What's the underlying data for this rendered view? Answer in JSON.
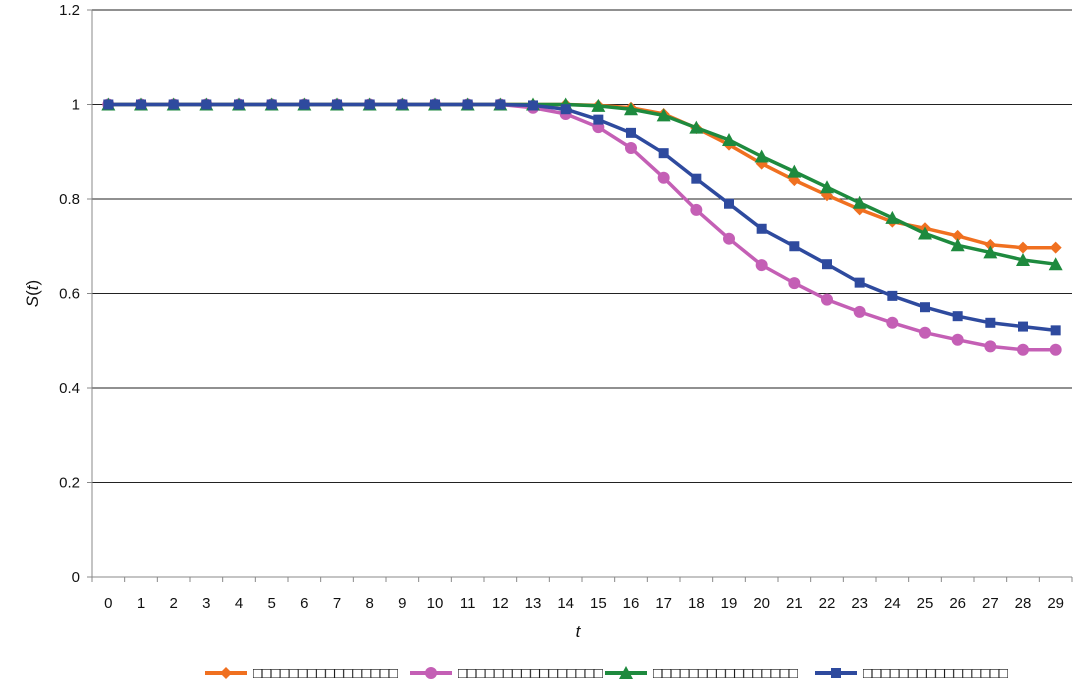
{
  "chart_data": {
    "type": "line",
    "title": "",
    "xlabel": "t",
    "ylabel": "S(t)",
    "x": [
      0,
      1,
      2,
      3,
      4,
      5,
      6,
      7,
      8,
      9,
      10,
      11,
      12,
      13,
      14,
      15,
      16,
      17,
      18,
      19,
      20,
      21,
      22,
      23,
      24,
      25,
      26,
      27,
      28,
      29
    ],
    "ylim": [
      0,
      1.2
    ],
    "yticks": [
      "0",
      "0.2",
      "0.4",
      "0.6",
      "0.8",
      "1",
      "1.2"
    ],
    "ytick_values": [
      0,
      0.2,
      0.4,
      0.6,
      0.8,
      1,
      1.2
    ],
    "grid": "horizontal",
    "legend_position": "bottom",
    "series": [
      {
        "name": "□□□□□□□□□□□□□□□□",
        "color": "#f07020",
        "marker": "diamond",
        "values": [
          1,
          1,
          1,
          1,
          1,
          1,
          1,
          1,
          1,
          1,
          1,
          1,
          1,
          1,
          1,
          0.998,
          0.993,
          0.98,
          0.95,
          0.915,
          0.875,
          0.84,
          0.808,
          0.778,
          0.752,
          0.738,
          0.722,
          0.703,
          0.697,
          0.697
        ]
      },
      {
        "name": "□□□□□□□□□□□□□□□□",
        "color": "#c45fb5",
        "marker": "circle",
        "values": [
          1,
          1,
          1,
          1,
          1,
          1,
          1,
          1,
          1,
          1,
          1,
          1,
          1,
          0.993,
          0.98,
          0.952,
          0.908,
          0.845,
          0.777,
          0.716,
          0.66,
          0.622,
          0.587,
          0.561,
          0.538,
          0.517,
          0.502,
          0.488,
          0.481,
          0.481
        ]
      },
      {
        "name": "□□□□□□□□□□□□□□□□",
        "color": "#1e8a3e",
        "marker": "triangle",
        "values": [
          1,
          1,
          1,
          1,
          1,
          1,
          1,
          1,
          1,
          1,
          1,
          1,
          1,
          1,
          1,
          0.997,
          0.99,
          0.977,
          0.951,
          0.925,
          0.89,
          0.858,
          0.825,
          0.792,
          0.76,
          0.727,
          0.702,
          0.687,
          0.671,
          0.662
        ]
      },
      {
        "name": "□□□□□□□□□□□□□□□□",
        "color": "#2e4a9e",
        "marker": "square",
        "values": [
          1,
          1,
          1,
          1,
          1,
          1,
          1,
          1,
          1,
          1,
          1,
          1,
          1,
          0.998,
          0.99,
          0.968,
          0.94,
          0.897,
          0.843,
          0.79,
          0.737,
          0.7,
          0.662,
          0.623,
          0.595,
          0.571,
          0.552,
          0.538,
          0.53,
          0.522
        ]
      }
    ]
  }
}
